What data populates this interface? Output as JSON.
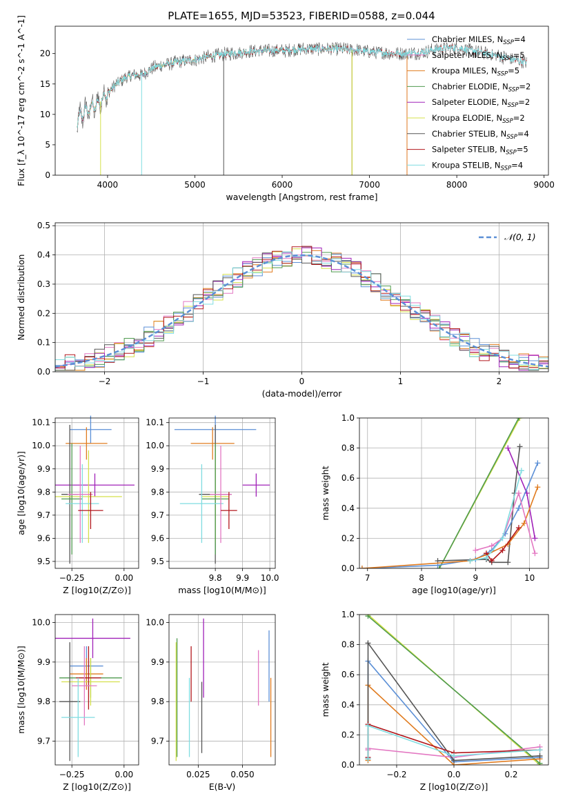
{
  "figure": {
    "title": "PLATE=1655, MJD=53523, FIBERID=0588, z=0.044"
  },
  "colors": {
    "Chabrier MILES": "#5b8fd6",
    "Salpeter MILES": "#e377c2",
    "Kroupa MILES": "#e07b1f",
    "Chabrier ELODIE": "#4e9a4e",
    "Salpeter ELODIE": "#a020b8",
    "Kroupa ELODIE": "#d4e04a",
    "Chabrier STELIB": "#555555",
    "Salpeter STELIB": "#b2171c",
    "Kroupa STELIB": "#7fdce0"
  },
  "chart_data": [
    {
      "id": "spectrum",
      "type": "line",
      "title": "PLATE=1655, MJD=53523, FIBERID=0588, z=0.044",
      "xlabel": "wavelength [Angstrom, rest frame]",
      "ylabel": "Flux [f_λ 10^-17 erg cm^-2 s^-1 A^-1]",
      "xlim": [
        3400,
        9050
      ],
      "ylim": [
        0,
        24.5
      ],
      "xticks": [
        4000,
        5000,
        6000,
        7000,
        8000,
        9000
      ],
      "yticks": [
        0,
        5,
        10,
        15,
        20
      ],
      "grid": false,
      "legend_position": "right",
      "continuum": {
        "x": [
          3650,
          3700,
          3800,
          3900,
          4000,
          4100,
          4200,
          4300,
          4400,
          4500,
          4600,
          4800,
          5000,
          5200,
          5400,
          5600,
          5800,
          6000,
          6200,
          6400,
          6600,
          6800,
          7000,
          7200,
          7400,
          7600,
          7800,
          8000,
          8200,
          8400,
          8600,
          8800
        ],
        "y": [
          8.5,
          10.0,
          11.0,
          11.8,
          13.5,
          15.0,
          16.0,
          16.5,
          16.5,
          17.5,
          18.0,
          18.6,
          19.0,
          19.6,
          20.0,
          20.3,
          20.5,
          20.5,
          20.7,
          20.8,
          20.8,
          20.6,
          20.3,
          20.1,
          20.0,
          20.2,
          20.8,
          21.0,
          20.4,
          19.8,
          19.2,
          18.5
        ]
      },
      "series": [
        {
          "name": "Chabrier MILES",
          "label_sub": "=4",
          "xmax": 7430
        },
        {
          "name": "Salpeter MILES",
          "label_sub": "=5",
          "xmax": 7430
        },
        {
          "name": "Kroupa MILES",
          "label_sub": "=5",
          "xmax": 7430
        },
        {
          "name": "Chabrier ELODIE",
          "label_sub": "=2",
          "xmax": 6800
        },
        {
          "name": "Salpeter ELODIE",
          "label_sub": "=2",
          "xmax": 6800
        },
        {
          "name": "Kroupa ELODIE",
          "label_sub": "=2",
          "xmax": 6800
        },
        {
          "name": "Chabrier STELIB",
          "label_sub": "=4",
          "xmax": 8800
        },
        {
          "name": "Salpeter STELIB",
          "label_sub": "=5",
          "xmax": 8800
        },
        {
          "name": "Kroupa STELIB",
          "label_sub": "=4",
          "xmax": 8800
        }
      ]
    },
    {
      "id": "residuals",
      "type": "line",
      "xlabel": "(data-model)/error",
      "ylabel": "Normed distribution",
      "xlim": [
        -2.5,
        2.5
      ],
      "ylim": [
        0,
        0.51
      ],
      "xticks": [
        -2,
        -1,
        0,
        1,
        2
      ],
      "yticks": [
        0.0,
        0.1,
        0.2,
        0.3,
        0.4,
        0.5
      ],
      "grid": true,
      "legend_position": "top-right",
      "legend": "𝒩(0, 1)",
      "bin_width": 0.1,
      "bin_start": -2.5,
      "bins": 50
    },
    {
      "id": "age-vs-Z",
      "type": "errorbar",
      "xlabel": "Z [log10(Z/Z⊙)]",
      "ylabel": "age [log10(age/yr)]",
      "xlim": [
        -0.33,
        0.07
      ],
      "ylim": [
        9.47,
        10.12
      ],
      "xticks": [
        -0.25,
        0.0
      ],
      "yticks": [
        9.5,
        9.6,
        9.7,
        9.8,
        9.9,
        10.0,
        10.1
      ],
      "grid": true,
      "points": [
        {
          "series": "Chabrier MILES",
          "x": -0.16,
          "xerr": 0.1,
          "y": 10.07,
          "yerr": 0.06
        },
        {
          "series": "Kroupa MILES",
          "x": -0.18,
          "xerr": 0.1,
          "y": 10.01,
          "yerr": 0.07
        },
        {
          "series": "Salpeter ELODIE",
          "x": -0.14,
          "xerr": 0.19,
          "y": 9.83,
          "yerr": 0.05
        },
        {
          "series": "Chabrier STELIB",
          "x": -0.26,
          "xerr": 0.04,
          "y": 9.79,
          "yerr": 0.3
        },
        {
          "series": "Kroupa ELODIE",
          "x": -0.17,
          "xerr": 0.16,
          "y": 9.78,
          "yerr": 0.2
        },
        {
          "series": "Chabrier ELODIE",
          "x": -0.25,
          "xerr": 0.05,
          "y": 9.77,
          "yerr": 0.24
        },
        {
          "series": "Kroupa STELIB",
          "x": -0.2,
          "xerr": 0.08,
          "y": 9.75,
          "yerr": 0.17
        },
        {
          "series": "Salpeter MILES",
          "x": -0.21,
          "xerr": 0.06,
          "y": 9.79,
          "yerr": 0.21
        },
        {
          "series": "Salpeter STELIB",
          "x": -0.16,
          "xerr": 0.06,
          "y": 9.72,
          "yerr": 0.08
        }
      ]
    },
    {
      "id": "age-vs-mass",
      "type": "errorbar",
      "xlabel": "mass [log10(M/M⊙)]",
      "ylabel": "",
      "xlim": [
        9.63,
        10.02
      ],
      "ylim": [
        9.47,
        10.12
      ],
      "xticks": [
        9.8,
        9.9,
        10.0
      ],
      "yticks": [
        9.5,
        9.6,
        9.7,
        9.8,
        9.9,
        10.0,
        10.1
      ],
      "grid": true,
      "points": [
        {
          "series": "Chabrier MILES",
          "x": 9.8,
          "xerr": 0.15,
          "y": 10.07,
          "yerr": 0.06
        },
        {
          "series": "Kroupa MILES",
          "x": 9.79,
          "xerr": 0.08,
          "y": 10.01,
          "yerr": 0.07
        },
        {
          "series": "Salpeter ELODIE",
          "x": 9.95,
          "xerr": 0.05,
          "y": 9.83,
          "yerr": 0.05
        },
        {
          "series": "Chabrier STELIB",
          "x": 9.8,
          "xerr": 0.06,
          "y": 9.79,
          "yerr": 0.3
        },
        {
          "series": "Kroupa ELODIE",
          "x": 9.8,
          "xerr": 0.05,
          "y": 9.78,
          "yerr": 0.2
        },
        {
          "series": "Chabrier ELODIE",
          "x": 9.8,
          "xerr": 0.05,
          "y": 9.77,
          "yerr": 0.24
        },
        {
          "series": "Kroupa STELIB",
          "x": 9.75,
          "xerr": 0.08,
          "y": 9.75,
          "yerr": 0.17
        },
        {
          "series": "Salpeter MILES",
          "x": 9.82,
          "xerr": 0.04,
          "y": 9.79,
          "yerr": 0.21
        },
        {
          "series": "Salpeter STELIB",
          "x": 9.85,
          "xerr": 0.03,
          "y": 9.72,
          "yerr": 0.08
        }
      ]
    },
    {
      "id": "massweight-vs-age",
      "type": "line",
      "xlabel": "age [log10(age/yr)]",
      "ylabel": "mass weight",
      "xlim": [
        6.85,
        10.35
      ],
      "ylim": [
        0,
        1.0
      ],
      "xticks": [
        7,
        8,
        9,
        10
      ],
      "yticks": [
        0.0,
        0.2,
        0.4,
        0.6,
        0.8,
        1.0
      ],
      "grid": true,
      "series": [
        {
          "name": "Kroupa ELODIE",
          "x": [
            8.33,
            9.82
          ],
          "y": [
            0.0,
            1.0
          ]
        },
        {
          "name": "Chabrier ELODIE",
          "x": [
            8.33,
            9.8
          ],
          "y": [
            0.0,
            1.0
          ]
        },
        {
          "name": "Salpeter ELODIE",
          "x": [
            9.6,
            9.95,
            10.1
          ],
          "y": [
            0.8,
            0.5,
            0.2
          ]
        },
        {
          "name": "Chabrier STELIB",
          "x": [
            8.3,
            9.2,
            9.3,
            9.6,
            9.72,
            9.82
          ],
          "y": [
            0.05,
            0.06,
            0.04,
            0.04,
            0.5,
            0.81
          ]
        },
        {
          "name": "Chabrier MILES",
          "x": [
            6.9,
            8.3,
            9.0,
            9.3,
            9.55,
            9.8,
            10.15
          ],
          "y": [
            0.0,
            0.02,
            0.06,
            0.12,
            0.23,
            0.4,
            0.7
          ]
        },
        {
          "name": "Kroupa MILES",
          "x": [
            6.9,
            8.9,
            9.2,
            9.6,
            9.9,
            10.15
          ],
          "y": [
            0.0,
            0.05,
            0.09,
            0.16,
            0.3,
            0.54
          ]
        },
        {
          "name": "Salpeter MILES",
          "x": [
            9.0,
            9.3,
            9.5,
            9.8,
            10.1
          ],
          "y": [
            0.12,
            0.15,
            0.2,
            0.5,
            0.1
          ]
        },
        {
          "name": "Salpeter STELIB",
          "x": [
            9.2,
            9.3,
            9.5,
            9.8
          ],
          "y": [
            0.1,
            0.05,
            0.12,
            0.27
          ]
        },
        {
          "name": "Kroupa STELIB",
          "x": [
            8.9,
            9.2,
            9.5,
            9.85
          ],
          "y": [
            0.05,
            0.07,
            0.2,
            0.65
          ]
        }
      ]
    },
    {
      "id": "mass-vs-Z",
      "type": "errorbar",
      "xlabel": "Z [log10(Z/Z⊙)]",
      "ylabel": "mass [log10(M/M⊙)]",
      "xlim": [
        -0.33,
        0.07
      ],
      "ylim": [
        9.64,
        10.02
      ],
      "xticks": [
        -0.25,
        0.0
      ],
      "yticks": [
        9.7,
        9.8,
        9.9,
        10.0
      ],
      "grid": true,
      "points": [
        {
          "series": "Salpeter ELODIE",
          "x": -0.15,
          "xerr": 0.18,
          "y": 9.96,
          "yerr": 0.05
        },
        {
          "series": "Chabrier MILES",
          "x": -0.18,
          "xerr": 0.08,
          "y": 9.89,
          "yerr": 0.05
        },
        {
          "series": "Kroupa MILES",
          "x": -0.18,
          "xerr": 0.08,
          "y": 9.87,
          "yerr": 0.04
        },
        {
          "series": "Chabrier ELODIE",
          "x": -0.16,
          "xerr": 0.15,
          "y": 9.86,
          "yerr": 0.05
        },
        {
          "series": "Kroupa ELODIE",
          "x": -0.16,
          "xerr": 0.14,
          "y": 9.85,
          "yerr": 0.06
        },
        {
          "series": "Salpeter STELIB",
          "x": -0.17,
          "xerr": 0.06,
          "y": 9.86,
          "yerr": 0.08
        },
        {
          "series": "Salpeter MILES",
          "x": -0.19,
          "xerr": 0.06,
          "y": 9.84,
          "yerr": 0.1
        },
        {
          "series": "Chabrier STELIB",
          "x": -0.26,
          "xerr": 0.05,
          "y": 9.8,
          "yerr": 0.15
        },
        {
          "series": "Kroupa STELIB",
          "x": -0.22,
          "xerr": 0.08,
          "y": 9.76,
          "yerr": 0.1
        }
      ]
    },
    {
      "id": "mass-vs-EBV",
      "type": "errorbar",
      "xlabel": "E(B-V)",
      "ylabel": "",
      "xlim": [
        0.0085,
        0.0685
      ],
      "ylim": [
        9.64,
        10.02
      ],
      "xticks": [
        0.025,
        0.05
      ],
      "yticks": [
        9.7,
        9.8,
        9.9,
        10.0
      ],
      "grid": true,
      "points": [
        {
          "series": "Chabrier ELODIE",
          "x": 0.013,
          "xerr": 0,
          "y": 9.81,
          "yerr": 0.15
        },
        {
          "series": "Kroupa ELODIE",
          "x": 0.0125,
          "xerr": 0,
          "y": 9.8,
          "yerr": 0.15
        },
        {
          "series": "Kroupa STELIB",
          "x": 0.02,
          "xerr": 0,
          "y": 9.76,
          "yerr": 0.1
        },
        {
          "series": "Salpeter STELIB",
          "x": 0.021,
          "xerr": 0,
          "y": 9.87,
          "yerr": 0.07
        },
        {
          "series": "Salpeter ELODIE",
          "x": 0.028,
          "xerr": 0,
          "y": 9.91,
          "yerr": 0.1
        },
        {
          "series": "Chabrier STELIB",
          "x": 0.027,
          "xerr": 0,
          "y": 9.76,
          "yerr": 0.09
        },
        {
          "series": "Salpeter MILES",
          "x": 0.059,
          "xerr": 0,
          "y": 9.86,
          "yerr": 0.07
        },
        {
          "series": "Chabrier MILES",
          "x": 0.065,
          "xerr": 0,
          "y": 9.89,
          "yerr": 0.09
        },
        {
          "series": "Kroupa MILES",
          "x": 0.066,
          "xerr": 0,
          "y": 9.76,
          "yerr": 0.1
        }
      ]
    },
    {
      "id": "massweight-vs-Z",
      "type": "line",
      "xlabel": "Z [log10(Z/Z⊙)]",
      "ylabel": "mass weight",
      "xlim": [
        -0.33,
        0.33
      ],
      "ylim": [
        0,
        1.0
      ],
      "xticks": [
        -0.2,
        0.0,
        0.2
      ],
      "yticks": [
        0.0,
        0.2,
        0.4,
        0.6,
        0.8,
        1.0
      ],
      "grid": true,
      "series": [
        {
          "name": "Kroupa ELODIE",
          "x": [
            -0.3,
            0.3
          ],
          "y": [
            1.0,
            0.0
          ]
        },
        {
          "name": "Chabrier ELODIE",
          "x": [
            -0.3,
            0.3
          ],
          "y": [
            0.99,
            0.01
          ]
        },
        {
          "name": "Chabrier MILES",
          "x": [
            -0.3,
            -0.3,
            0.0,
            0.3
          ],
          "y": [
            0.05,
            0.69,
            0.02,
            0.05
          ]
        },
        {
          "name": "Kroupa MILES",
          "x": [
            -0.3,
            -0.3,
            0.0,
            0.3
          ],
          "y": [
            0.03,
            0.53,
            0.0,
            0.04
          ]
        },
        {
          "name": "Salpeter MILES",
          "x": [
            -0.3,
            -0.3,
            0.0,
            0.3
          ],
          "y": [
            0.1,
            0.11,
            0.05,
            0.12
          ]
        },
        {
          "name": "Chabrier STELIB",
          "x": [
            -0.3,
            -0.3,
            0.0,
            0.3
          ],
          "y": [
            0.04,
            0.81,
            0.03,
            0.06
          ]
        },
        {
          "name": "Salpeter STELIB",
          "x": [
            -0.3,
            -0.3,
            0.0,
            0.3
          ],
          "y": [
            0.05,
            0.27,
            0.08,
            0.1
          ]
        },
        {
          "name": "Kroupa STELIB",
          "x": [
            -0.3,
            -0.3,
            0.0,
            0.3
          ],
          "y": [
            0.04,
            0.26,
            0.06,
            0.1
          ]
        }
      ]
    }
  ]
}
